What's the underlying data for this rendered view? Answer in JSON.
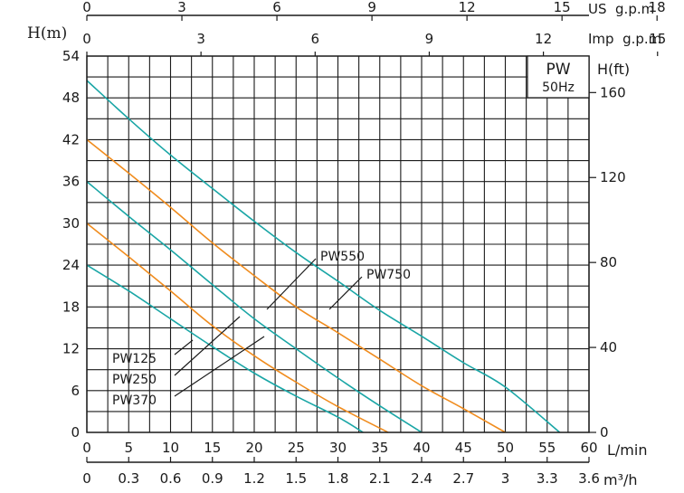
{
  "chart_data": {
    "type": "line",
    "title": "PW",
    "subtitle": "50Hz",
    "ylabel": "H(m)",
    "y2label": "H(ft)",
    "xlabel": "L/min",
    "x2label": "m³/h",
    "x_top1_label": "US  g.p.m",
    "x_top2_label": "Imp  g.p.m",
    "xlim": [
      0,
      60
    ],
    "ylim": [
      0,
      54
    ],
    "grid": true,
    "x_ticks": [
      "0",
      "5",
      "10",
      "15",
      "20",
      "25",
      "30",
      "35",
      "40",
      "45",
      "50",
      "55",
      "60"
    ],
    "x_m3h_ticks": [
      "0",
      "0.3",
      "0.6",
      "0.9",
      "1.2",
      "1.5",
      "1.8",
      "2.1",
      "2.4",
      "2.7",
      "3",
      "3.3",
      "3.6"
    ],
    "x_us_ticks": [
      "0",
      "3",
      "6",
      "9",
      "12",
      "15",
      "18"
    ],
    "x_imp_ticks": [
      "0",
      "3",
      "6",
      "9",
      "12",
      "15"
    ],
    "y_ticks": [
      "0",
      "6",
      "12",
      "18",
      "24",
      "30",
      "36",
      "42",
      "48",
      "54"
    ],
    "y_ft_ticks": [
      "0",
      "40",
      "80",
      "120",
      "160"
    ],
    "series": [
      {
        "name": "PW125",
        "color": "#1aa6a6",
        "x": [
          0,
          5,
          10,
          15,
          20,
          25,
          30,
          33
        ],
        "y": [
          24,
          20.3,
          16.3,
          12.3,
          8.5,
          5.2,
          2.2,
          0
        ]
      },
      {
        "name": "PW250",
        "color": "#f08c1e",
        "x": [
          0,
          5,
          10,
          15,
          20,
          25,
          30,
          36
        ],
        "y": [
          30,
          25.2,
          20.3,
          15.3,
          11,
          7.2,
          3.7,
          0
        ]
      },
      {
        "name": "PW370",
        "color": "#1aa6a6",
        "x": [
          0,
          5,
          10,
          15,
          20,
          25,
          30,
          35,
          40
        ],
        "y": [
          36,
          31,
          26.2,
          21.2,
          16.3,
          12,
          7.8,
          3.8,
          0
        ]
      },
      {
        "name": "PW550",
        "color": "#f08c1e",
        "x": [
          0,
          5,
          10,
          15,
          20,
          25,
          30,
          35,
          40,
          45,
          50
        ],
        "y": [
          42,
          37.2,
          32.3,
          27.2,
          22.5,
          18,
          14.3,
          10.5,
          6.7,
          3.4,
          0
        ]
      },
      {
        "name": "PW750",
        "color": "#1aa6a6",
        "x": [
          0,
          5,
          10,
          15,
          20,
          25,
          30,
          35,
          40,
          45,
          50,
          56.5
        ],
        "y": [
          50.5,
          45,
          39.8,
          35,
          30.3,
          25.8,
          21.7,
          17.5,
          13.8,
          10,
          6.5,
          0
        ]
      }
    ]
  }
}
